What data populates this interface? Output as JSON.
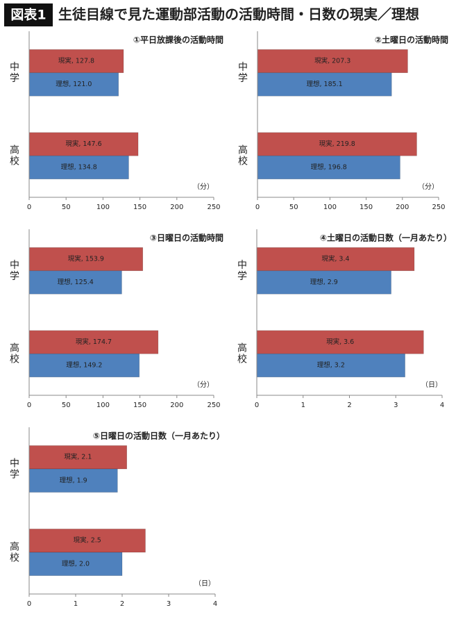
{
  "header": {
    "badge": "図表1",
    "title": "生徒目線で見た運動部活動の活動時間・日数の現実／理想"
  },
  "chart_data": [
    {
      "type": "bar",
      "orientation": "horizontal",
      "title": "①平日放課後の活動時間",
      "unit": "（分）",
      "categories": [
        "中学",
        "高校"
      ],
      "series": [
        {
          "color": "#c0504d",
          "values": [
            127.8,
            147.6
          ],
          "value_labels": [
            "現実, 127.8",
            "現実, 147.6"
          ]
        },
        {
          "color": "#4f81bd",
          "values": [
            121.0,
            134.8
          ],
          "value_labels": [
            "理想, 121.0",
            "理想, 134.8"
          ]
        }
      ],
      "xlim": [
        0,
        250
      ],
      "xticks": [
        0,
        50,
        100,
        150,
        200,
        250
      ]
    },
    {
      "type": "bar",
      "orientation": "horizontal",
      "title": "②土曜日の活動時間",
      "unit": "（分）",
      "categories": [
        "中学",
        "高校"
      ],
      "series": [
        {
          "color": "#c0504d",
          "values": [
            207.3,
            219.8
          ],
          "value_labels": [
            "現実, 207.3",
            "現実, 219.8"
          ]
        },
        {
          "color": "#4f81bd",
          "values": [
            185.1,
            196.8
          ],
          "value_labels": [
            "理想, 185.1",
            "理想, 196.8"
          ]
        }
      ],
      "xlim": [
        0,
        250
      ],
      "xticks": [
        0,
        50,
        100,
        150,
        200,
        250
      ]
    },
    {
      "type": "bar",
      "orientation": "horizontal",
      "title": "③日曜日の活動時間",
      "unit": "（分）",
      "categories": [
        "中学",
        "高校"
      ],
      "series": [
        {
          "color": "#c0504d",
          "values": [
            153.9,
            174.7
          ],
          "value_labels": [
            "現実, 153.9",
            "現実, 174.7"
          ]
        },
        {
          "color": "#4f81bd",
          "values": [
            125.4,
            149.2
          ],
          "value_labels": [
            "理想, 125.4",
            "理想, 149.2"
          ]
        }
      ],
      "xlim": [
        0,
        250
      ],
      "xticks": [
        0,
        50,
        100,
        150,
        200,
        250
      ]
    },
    {
      "type": "bar",
      "orientation": "horizontal",
      "title": "④土曜日の活動日数（一月あたり）",
      "unit": "（日）",
      "categories": [
        "中学",
        "高校"
      ],
      "series": [
        {
          "color": "#c0504d",
          "values": [
            3.4,
            3.6
          ],
          "value_labels": [
            "現実, 3.4",
            "現実, 3.6"
          ]
        },
        {
          "color": "#4f81bd",
          "values": [
            2.9,
            3.2
          ],
          "value_labels": [
            "理想, 2.9",
            "理想, 3.2"
          ]
        }
      ],
      "xlim": [
        0,
        4
      ],
      "xticks": [
        0,
        1,
        2,
        3,
        4
      ]
    },
    {
      "type": "bar",
      "orientation": "horizontal",
      "title": "⑤日曜日の活動日数（一月あたり）",
      "unit": "（日）",
      "categories": [
        "中学",
        "高校"
      ],
      "series": [
        {
          "color": "#c0504d",
          "values": [
            2.1,
            2.5
          ],
          "value_labels": [
            "現実, 2.1",
            "現実, 2.5"
          ]
        },
        {
          "color": "#4f81bd",
          "values": [
            1.9,
            2.0
          ],
          "value_labels": [
            "理想, 1.9",
            "理想, 2.0"
          ]
        }
      ],
      "xlim": [
        0,
        4
      ],
      "xticks": [
        0,
        1,
        2,
        3,
        4
      ]
    }
  ]
}
